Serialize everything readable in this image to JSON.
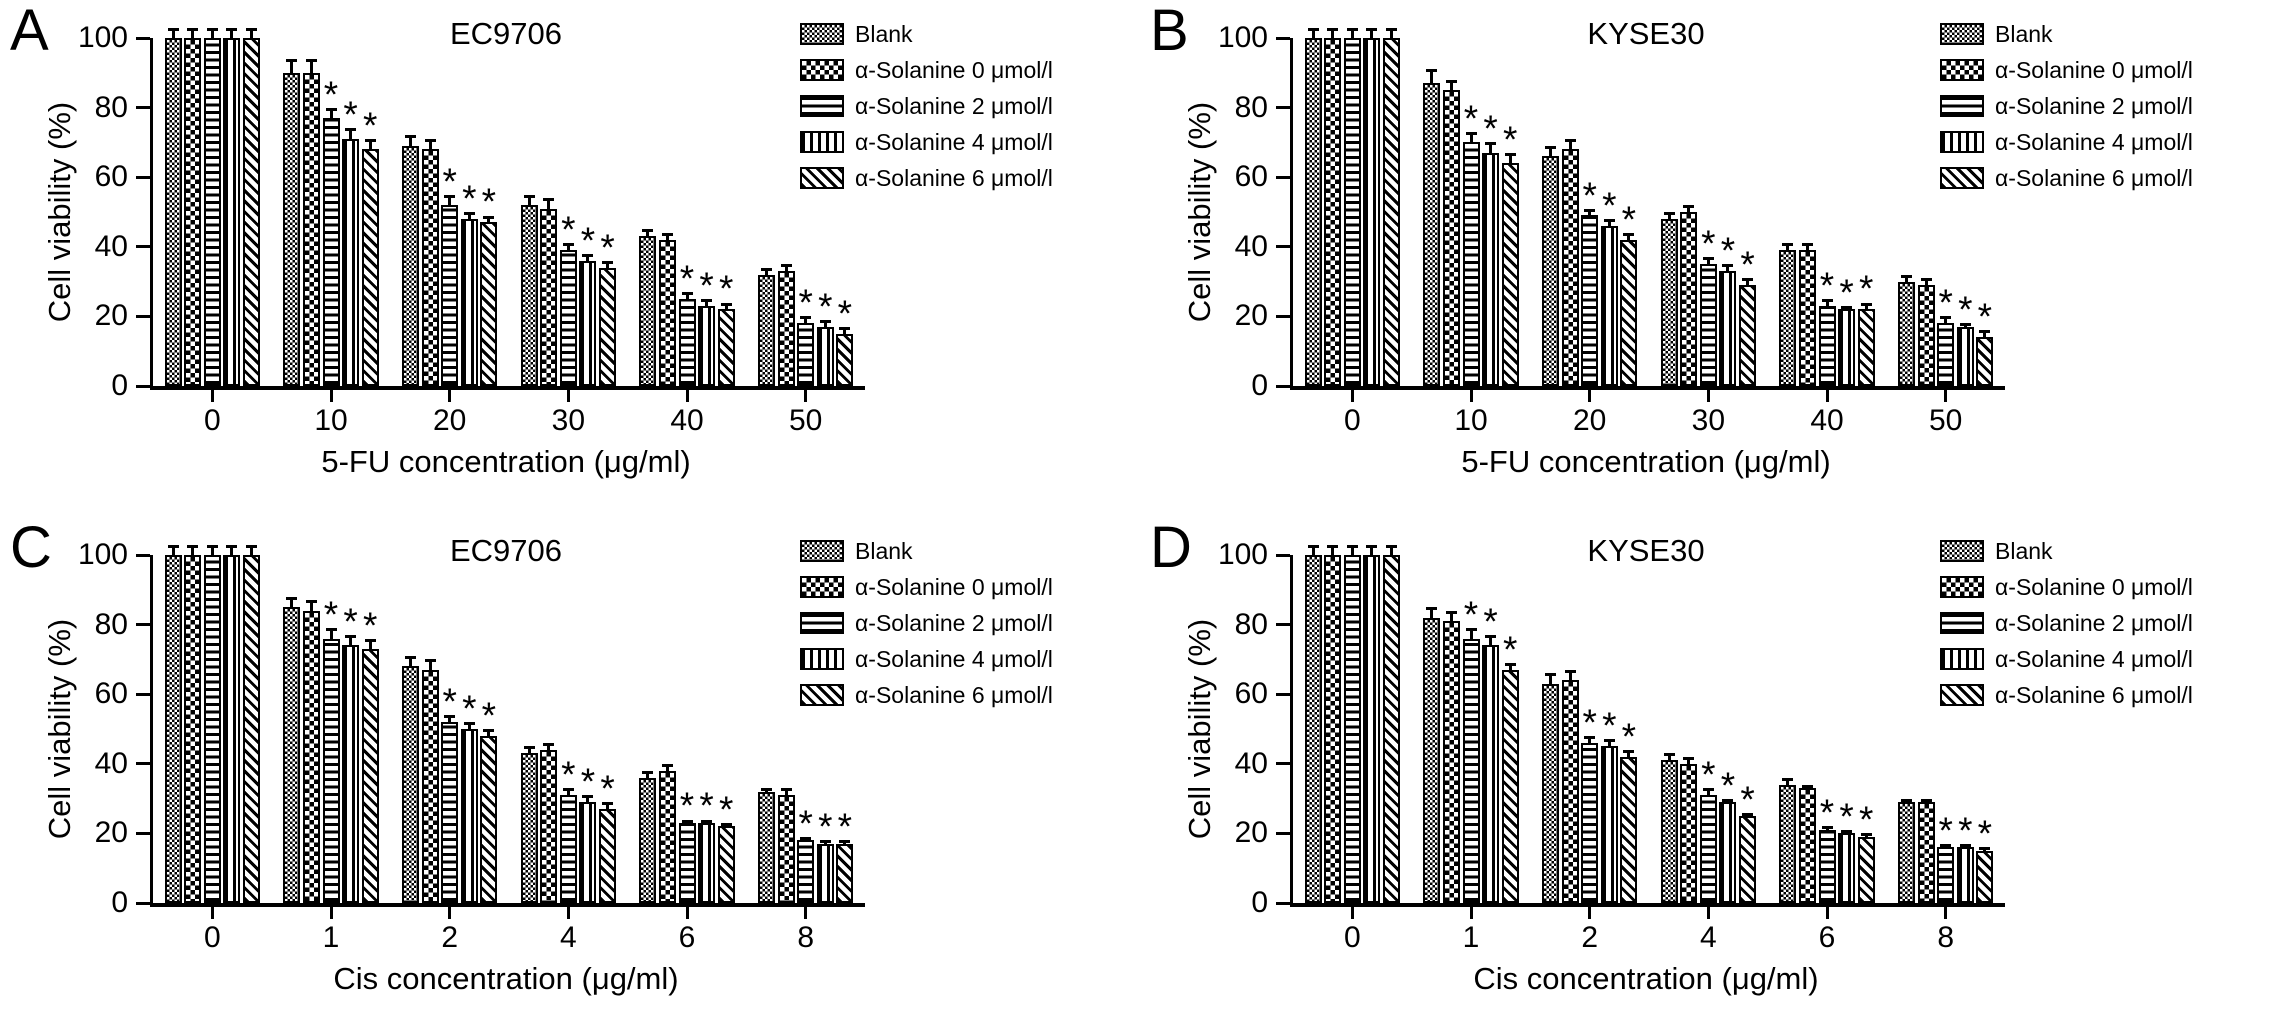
{
  "colors": {
    "ink": "#000000",
    "background": "#ffffff"
  },
  "sig_marker": "*",
  "chart_data": [
    {
      "id": "A",
      "type": "bar",
      "panel_label": "A",
      "title": "EC9706",
      "xlabel": "5-FU concentration (μg/ml)",
      "ylabel": "Cell viability (%)",
      "ylim": [
        0,
        100
      ],
      "yticks": [
        0,
        20,
        40,
        60,
        80,
        100
      ],
      "grid": false,
      "legend_position": "top-right",
      "categories": [
        "0",
        "10",
        "20",
        "30",
        "40",
        "50"
      ],
      "series": [
        {
          "name": "Blank",
          "pattern": "fine-checkerboard",
          "values": [
            100,
            90,
            69,
            52,
            43,
            32
          ],
          "errors": [
            3,
            4,
            3,
            3,
            2,
            2
          ],
          "sig": [
            false,
            false,
            false,
            false,
            false,
            false
          ]
        },
        {
          "name": "α-Solanine 0 μmol/l",
          "pattern": "checkerboard",
          "values": [
            100,
            90,
            68,
            51,
            42,
            33
          ],
          "errors": [
            3,
            4,
            3,
            3,
            2,
            2
          ],
          "sig": [
            false,
            false,
            false,
            false,
            false,
            false
          ]
        },
        {
          "name": "α-Solanine 2 μmol/l",
          "pattern": "horizontal-stripes",
          "values": [
            100,
            77,
            52,
            39,
            25,
            18
          ],
          "errors": [
            3,
            3,
            3,
            2,
            2,
            2
          ],
          "sig": [
            false,
            true,
            true,
            true,
            true,
            true
          ]
        },
        {
          "name": "α-Solanine 4 μmol/l",
          "pattern": "vertical-stripes",
          "values": [
            100,
            71,
            48,
            36,
            23,
            17
          ],
          "errors": [
            3,
            3,
            2,
            2,
            2,
            2
          ],
          "sig": [
            false,
            true,
            true,
            true,
            true,
            true
          ]
        },
        {
          "name": "α-Solanine 6 μmol/l",
          "pattern": "diagonal-stripes",
          "values": [
            100,
            68,
            47,
            34,
            22,
            15
          ],
          "errors": [
            3,
            3,
            2,
            2,
            2,
            2
          ],
          "sig": [
            false,
            true,
            true,
            true,
            true,
            true
          ]
        }
      ]
    },
    {
      "id": "B",
      "type": "bar",
      "panel_label": "B",
      "title": "KYSE30",
      "xlabel": "5-FU concentration (μg/ml)",
      "ylabel": "Cell viability (%)",
      "ylim": [
        0,
        100
      ],
      "yticks": [
        0,
        20,
        40,
        60,
        80,
        100
      ],
      "grid": false,
      "legend_position": "top-right",
      "categories": [
        "0",
        "10",
        "20",
        "30",
        "40",
        "50"
      ],
      "series": [
        {
          "name": "Blank",
          "pattern": "fine-checkerboard",
          "values": [
            100,
            87,
            66,
            48,
            39,
            30
          ],
          "errors": [
            3,
            4,
            3,
            2,
            2,
            2
          ],
          "sig": [
            false,
            false,
            false,
            false,
            false,
            false
          ]
        },
        {
          "name": "α-Solanine 0 μmol/l",
          "pattern": "checkerboard",
          "values": [
            100,
            85,
            68,
            50,
            39,
            29
          ],
          "errors": [
            3,
            3,
            3,
            2,
            2,
            2
          ],
          "sig": [
            false,
            false,
            false,
            false,
            false,
            false
          ]
        },
        {
          "name": "α-Solanine 2 μmol/l",
          "pattern": "horizontal-stripes",
          "values": [
            100,
            70,
            49,
            35,
            23,
            18
          ],
          "errors": [
            3,
            3,
            2,
            2,
            2,
            2
          ],
          "sig": [
            false,
            true,
            true,
            true,
            true,
            true
          ]
        },
        {
          "name": "α-Solanine 4 μmol/l",
          "pattern": "vertical-stripes",
          "values": [
            100,
            67,
            46,
            33,
            22,
            17
          ],
          "errors": [
            3,
            3,
            2,
            2,
            1,
            1
          ],
          "sig": [
            false,
            true,
            true,
            true,
            true,
            true
          ]
        },
        {
          "name": "α-Solanine 6 μmol/l",
          "pattern": "diagonal-stripes",
          "values": [
            100,
            64,
            42,
            29,
            22,
            14
          ],
          "errors": [
            3,
            3,
            2,
            2,
            2,
            2
          ],
          "sig": [
            false,
            true,
            true,
            true,
            true,
            true
          ]
        }
      ]
    },
    {
      "id": "C",
      "type": "bar",
      "panel_label": "C",
      "title": "EC9706",
      "xlabel": "Cis concentration (μg/ml)",
      "ylabel": "Cell viability (%)",
      "ylim": [
        0,
        100
      ],
      "yticks": [
        0,
        20,
        40,
        60,
        80,
        100
      ],
      "grid": false,
      "legend_position": "top-right",
      "categories": [
        "0",
        "1",
        "2",
        "4",
        "6",
        "8"
      ],
      "series": [
        {
          "name": "Blank",
          "pattern": "fine-checkerboard",
          "values": [
            100,
            85,
            68,
            43,
            36,
            32
          ],
          "errors": [
            3,
            3,
            3,
            2,
            2,
            1
          ],
          "sig": [
            false,
            false,
            false,
            false,
            false,
            false
          ]
        },
        {
          "name": "α-Solanine 0 μmol/l",
          "pattern": "checkerboard",
          "values": [
            100,
            84,
            67,
            44,
            38,
            31
          ],
          "errors": [
            3,
            3,
            3,
            2,
            2,
            2
          ],
          "sig": [
            false,
            false,
            false,
            false,
            false,
            false
          ]
        },
        {
          "name": "α-Solanine 2 μmol/l",
          "pattern": "horizontal-stripes",
          "values": [
            100,
            76,
            52,
            31,
            23,
            18
          ],
          "errors": [
            3,
            3,
            2,
            2,
            1,
            1
          ],
          "sig": [
            false,
            true,
            true,
            true,
            true,
            true
          ]
        },
        {
          "name": "α-Solanine 4 μmol/l",
          "pattern": "vertical-stripes",
          "values": [
            100,
            74,
            50,
            29,
            23,
            17
          ],
          "errors": [
            3,
            3,
            2,
            2,
            1,
            1
          ],
          "sig": [
            false,
            true,
            true,
            true,
            true,
            true
          ]
        },
        {
          "name": "α-Solanine 6 μmol/l",
          "pattern": "diagonal-stripes",
          "values": [
            100,
            73,
            48,
            27,
            22,
            17
          ],
          "errors": [
            3,
            3,
            2,
            2,
            1,
            1
          ],
          "sig": [
            false,
            true,
            true,
            true,
            true,
            true
          ]
        }
      ]
    },
    {
      "id": "D",
      "type": "bar",
      "panel_label": "D",
      "title": "KYSE30",
      "xlabel": "Cis concentration (μg/ml)",
      "ylabel": "Cell viability (%)",
      "ylim": [
        0,
        100
      ],
      "yticks": [
        0,
        20,
        40,
        60,
        80,
        100
      ],
      "grid": false,
      "legend_position": "top-right",
      "categories": [
        "0",
        "1",
        "2",
        "4",
        "6",
        "8"
      ],
      "series": [
        {
          "name": "Blank",
          "pattern": "fine-checkerboard",
          "values": [
            100,
            82,
            63,
            41,
            34,
            29
          ],
          "errors": [
            3,
            3,
            3,
            2,
            2,
            1
          ],
          "sig": [
            false,
            false,
            false,
            false,
            false,
            false
          ]
        },
        {
          "name": "α-Solanine 0 μmol/l",
          "pattern": "checkerboard",
          "values": [
            100,
            81,
            64,
            40,
            33,
            29
          ],
          "errors": [
            3,
            3,
            3,
            2,
            1,
            1
          ],
          "sig": [
            false,
            false,
            false,
            false,
            false,
            false
          ]
        },
        {
          "name": "α-Solanine 2 μmol/l",
          "pattern": "horizontal-stripes",
          "values": [
            100,
            76,
            46,
            31,
            21,
            16
          ],
          "errors": [
            3,
            3,
            2,
            2,
            1,
            1
          ],
          "sig": [
            false,
            true,
            true,
            true,
            true,
            true
          ]
        },
        {
          "name": "α-Solanine 4 μmol/l",
          "pattern": "vertical-stripes",
          "values": [
            100,
            74,
            45,
            29,
            20,
            16
          ],
          "errors": [
            3,
            3,
            2,
            1,
            1,
            1
          ],
          "sig": [
            false,
            true,
            true,
            true,
            true,
            true
          ]
        },
        {
          "name": "α-Solanine 6 μmol/l",
          "pattern": "diagonal-stripes",
          "values": [
            100,
            67,
            42,
            25,
            19,
            15
          ],
          "errors": [
            3,
            2,
            2,
            1,
            1,
            1
          ],
          "sig": [
            false,
            true,
            true,
            true,
            true,
            true
          ]
        }
      ]
    }
  ]
}
